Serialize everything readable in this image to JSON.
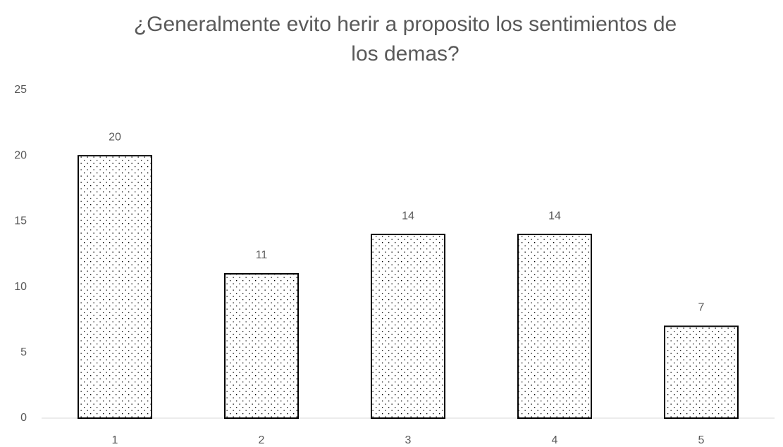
{
  "chart_data": {
    "type": "bar",
    "title": "¿Generalmente evito herir a proposito los sentimientos de los demas?",
    "categories": [
      "1",
      "2",
      "3",
      "4",
      "5"
    ],
    "values": [
      20,
      11,
      14,
      14,
      7
    ],
    "color": "#000000",
    "ylim": [
      0,
      25
    ],
    "yticks": [
      0,
      5,
      10,
      15,
      20,
      25
    ],
    "grid": false
  }
}
